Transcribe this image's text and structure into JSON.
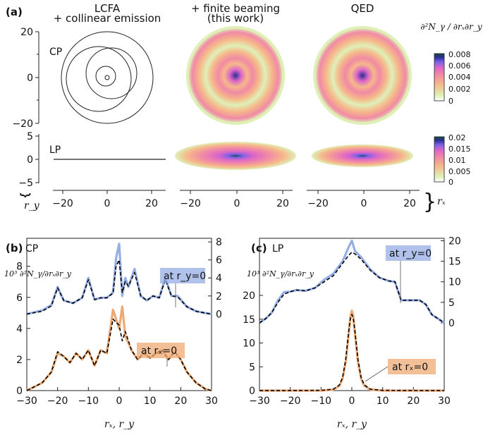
{
  "panels": {
    "a": {
      "label": "(a)"
    },
    "b": {
      "label": "(b)",
      "name": "CP"
    },
    "c": {
      "label": "(c)",
      "name": "LP"
    }
  },
  "column_titles": {
    "lcfa_line1": "LCFA",
    "lcfa_line2": "+ collinear emission",
    "beam_line1": "+ finite beaming",
    "beam_line2": "(this work)",
    "qed": "QED"
  },
  "row_labels": {
    "cp": "CP",
    "lp": "LP"
  },
  "axis_symbols": {
    "rx": "rₓ",
    "ry": "r_y",
    "rx_ry": "rₓ,  r_y"
  },
  "colorbar_label": "∂²N_γ / ∂rₓ∂r_y",
  "colors": {
    "blue": "#95aee6",
    "orange": "#eda974",
    "dash": "#000000",
    "map": [
      "#ffffff",
      "#dff0b7",
      "#f6b88a",
      "#f18aa5",
      "#dc66c9",
      "#7d62e6",
      "#2a2f95",
      "#1a4a3c"
    ]
  },
  "colorbars": {
    "cp": {
      "ticks": [
        "0.008",
        "0.006",
        "0.004",
        "0.002",
        "0"
      ]
    },
    "lp": {
      "ticks": [
        "0.02",
        "0.015",
        "0.01",
        "0.005",
        "0"
      ]
    }
  },
  "panel_a_axes": {
    "y_cp_ticks": [
      "20",
      "0",
      "−20"
    ],
    "y_lp_ticks": [
      "5",
      "0",
      "−5"
    ],
    "x_ticks": [
      "−20",
      "0",
      "20"
    ]
  },
  "chart_data": [
    {
      "type": "heatmap",
      "title": "(a)",
      "xlabel": "rₓ",
      "ylabel": "r_y",
      "rows": [
        "CP",
        "LP"
      ],
      "columns": [
        "LCFA + collinear emission",
        "+ finite beaming (this work)",
        "QED"
      ],
      "colorbar_cp": [
        0,
        0.008
      ],
      "colorbar_lp": [
        0,
        0.02
      ],
      "ylim_cp": [
        -20,
        20
      ],
      "ylim_lp": [
        -5,
        5
      ],
      "xlim": [
        -25,
        25
      ]
    },
    {
      "type": "line",
      "title": "(b) CP",
      "xlabel": "rₓ,  r_y",
      "ylabel": "10³ ∂²N_γ/∂rₓ∂r_y",
      "xlim": [
        -30,
        30
      ],
      "ylim_left": [
        0,
        8
      ],
      "ylim_right": [
        0,
        8
      ],
      "x_ticks": [
        "−30",
        "−20",
        "−10",
        "0",
        "10",
        "20",
        "30"
      ],
      "left_ticks": [
        "0",
        "2",
        "4",
        "6",
        "8"
      ],
      "right_ticks": [
        "0",
        "2",
        "4",
        "6",
        "8"
      ],
      "series": [
        {
          "name": "at r_y=0",
          "axis": "right",
          "color": "#95aee6",
          "x": [
            -30,
            -25,
            -22,
            -20,
            -18,
            -15,
            -12,
            -10,
            -8,
            -6,
            -4,
            -2,
            -1,
            0,
            1,
            2,
            3,
            5,
            7,
            9,
            11,
            13,
            15,
            17,
            19,
            22,
            25,
            28,
            30
          ],
          "y": [
            0,
            0.4,
            1.0,
            3.0,
            1.5,
            1.2,
            1.8,
            4.0,
            1.6,
            1.8,
            1.8,
            2.4,
            6.2,
            7.8,
            2.0,
            4.0,
            3.0,
            5.0,
            2.0,
            1.5,
            2.0,
            1.8,
            4.0,
            2.0,
            2.0,
            0.8,
            0.3,
            0.1,
            0
          ]
        },
        {
          "name": "at r_y=0 (QED)",
          "axis": "right",
          "color": "#000000",
          "dashed": true,
          "x": [
            -30,
            -25,
            -22,
            -20,
            -18,
            -15,
            -12,
            -10,
            -8,
            -6,
            -4,
            -2,
            -1,
            0,
            1,
            2,
            3,
            5,
            7,
            9,
            11,
            13,
            15,
            17,
            19,
            22,
            25,
            28,
            30
          ],
          "y": [
            0,
            0.3,
            0.9,
            2.9,
            1.5,
            1.2,
            1.8,
            3.8,
            1.6,
            1.8,
            1.8,
            2.3,
            5.3,
            6.0,
            2.4,
            3.6,
            3.1,
            4.6,
            2.0,
            1.5,
            2.0,
            1.8,
            3.8,
            2.0,
            1.9,
            0.8,
            0.3,
            0.1,
            0
          ]
        },
        {
          "name": "at rₓ=0",
          "axis": "left",
          "color": "#eda974",
          "x": [
            -30,
            -25,
            -22,
            -20,
            -18,
            -16,
            -14,
            -12,
            -10,
            -8,
            -6,
            -4,
            -2,
            0,
            1,
            2,
            4,
            6,
            8,
            10,
            12,
            14,
            16,
            18,
            20,
            22,
            25,
            28,
            30
          ],
          "y": [
            0,
            0.5,
            1.2,
            2.4,
            2.2,
            1.8,
            2.4,
            2.0,
            2.6,
            1.6,
            2.6,
            2.4,
            5.2,
            4.0,
            5.4,
            3.5,
            2.6,
            2.0,
            2.4,
            2.1,
            2.4,
            2.6,
            2.0,
            2.5,
            2.0,
            1.2,
            0.5,
            0.1,
            0
          ]
        },
        {
          "name": "at rₓ=0 (QED)",
          "axis": "left",
          "color": "#000000",
          "dashed": true,
          "x": [
            -30,
            -25,
            -22,
            -20,
            -18,
            -16,
            -14,
            -12,
            -10,
            -8,
            -6,
            -4,
            -2,
            0,
            1,
            2,
            4,
            6,
            8,
            10,
            12,
            14,
            16,
            18,
            20,
            22,
            25,
            28,
            30
          ],
          "y": [
            0,
            0.5,
            1.2,
            2.5,
            2.2,
            1.8,
            2.4,
            2.0,
            2.6,
            1.6,
            2.6,
            2.4,
            4.6,
            4.2,
            3.2,
            3.8,
            2.6,
            2.0,
            2.4,
            2.1,
            2.4,
            2.6,
            2.0,
            2.5,
            2.0,
            1.2,
            0.5,
            0.1,
            0
          ]
        }
      ]
    },
    {
      "type": "line",
      "title": "(c) LP",
      "xlabel": "rₓ,  r_y",
      "ylabel": "10³ ∂²N_γ/∂rₓ∂r_y",
      "xlim": [
        -30,
        30
      ],
      "ylim_left": [
        0,
        25
      ],
      "ylim_right": [
        0,
        20
      ],
      "x_ticks": [
        "−30",
        "−20",
        "−10",
        "0",
        "10",
        "20",
        "30"
      ],
      "left_ticks": [
        "0",
        "5",
        "10",
        "15",
        "20"
      ],
      "right_ticks": [
        "0",
        "5",
        "10",
        "15",
        "20"
      ],
      "series": [
        {
          "name": "at r_y=0",
          "axis": "right",
          "color": "#95aee6",
          "x": [
            -30,
            -28,
            -26,
            -24,
            -22,
            -20,
            -18,
            -15,
            -12,
            -9,
            -6,
            -3,
            -1,
            0,
            1,
            3,
            6,
            9,
            12,
            14,
            16,
            18,
            20,
            22,
            24,
            26,
            28,
            30
          ],
          "y": [
            0,
            1.0,
            2.5,
            5.5,
            7.5,
            7.6,
            8.0,
            7.8,
            8.5,
            10.5,
            12.0,
            15.0,
            18.5,
            20.0,
            17.5,
            16.0,
            13.0,
            11.0,
            10.2,
            10.0,
            5.5,
            5.5,
            5.5,
            5.5,
            4.5,
            2.0,
            1.0,
            0
          ]
        },
        {
          "name": "at r_y=0 (QED)",
          "axis": "right",
          "color": "#000000",
          "dashed": true,
          "x": [
            -30,
            -28,
            -26,
            -24,
            -22,
            -20,
            -18,
            -15,
            -12,
            -9,
            -6,
            -3,
            -1,
            0,
            1,
            3,
            6,
            9,
            12,
            14,
            16,
            18,
            20,
            22,
            24,
            26,
            28,
            30
          ],
          "y": [
            0,
            1.0,
            2.5,
            5.0,
            7.0,
            7.6,
            8.0,
            7.8,
            8.5,
            10.0,
            11.5,
            14.5,
            16.5,
            17.2,
            16.8,
            15.5,
            12.8,
            11.0,
            10.2,
            10.0,
            5.5,
            5.5,
            5.5,
            5.5,
            4.5,
            2.0,
            1.0,
            0
          ]
        },
        {
          "name": "at rₓ=0",
          "axis": "left",
          "color": "#eda974",
          "x": [
            -30,
            -10,
            -6,
            -4,
            -3,
            -2,
            -1,
            -0.5,
            0,
            0.5,
            1,
            2,
            3,
            4,
            6,
            10,
            30
          ],
          "y": [
            0,
            0,
            0.2,
            1.0,
            2.5,
            6.0,
            12.0,
            15.5,
            16.8,
            15.5,
            12.0,
            6.0,
            2.5,
            1.0,
            0.2,
            0,
            0
          ]
        },
        {
          "name": "at rₓ=0 (QED)",
          "axis": "left",
          "color": "#000000",
          "dashed": true,
          "x": [
            -30,
            -10,
            -6,
            -4,
            -3,
            -2,
            -1,
            -0.5,
            0,
            0.5,
            1,
            2,
            3,
            4,
            6,
            10,
            30
          ],
          "y": [
            0,
            0.05,
            0.3,
            1.2,
            2.8,
            6.5,
            12.5,
            15.0,
            16.0,
            15.0,
            12.5,
            6.5,
            2.8,
            1.2,
            0.3,
            0.05,
            0
          ]
        }
      ]
    }
  ],
  "legend": {
    "b_blue": "at r_y=0",
    "b_orange": "at rₓ=0",
    "c_blue": "at r_y=0",
    "c_orange": "at rₓ=0"
  }
}
